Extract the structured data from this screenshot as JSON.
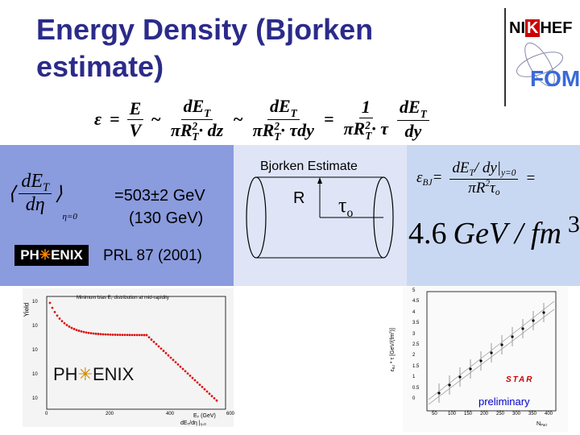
{
  "header": {
    "title": [
      "Energy Density (Bjorken",
      "estimate)"
    ],
    "logo_top": [
      "NI",
      "K",
      "HEF"
    ],
    "logo_bottom": "FOM"
  },
  "formula": [
    {
      "text": [
        {
          "t": "ε"
        }
      ]
    },
    {
      "text": [
        {
          "t": "="
        }
      ]
    },
    {
      "num": [
        {
          "t": "E"
        }
      ],
      "den": [
        {
          "t": "V"
        }
      ]
    },
    {
      "text": [
        {
          "t": "~"
        }
      ]
    },
    {
      "num": [
        {
          "t": "dE",
          "sub": "T"
        }
      ],
      "den": [
        {
          "t": "πR",
          "sub": "T",
          "sup": "2"
        },
        {
          "t": "· dz"
        }
      ]
    },
    {
      "text": [
        {
          "t": "~"
        }
      ]
    },
    {
      "num": [
        {
          "t": "dE",
          "sub": "T"
        }
      ],
      "den": [
        {
          "t": "πR",
          "sub": "T",
          "sup": "2"
        },
        {
          "t": "· τdy"
        }
      ]
    },
    {
      "text": [
        {
          "t": "="
        }
      ]
    },
    {
      "num": [
        {
          "t": "1"
        }
      ],
      "den": [
        {
          "t": "πR",
          "sub": "T",
          "sup": "2"
        },
        {
          "t": "· τ"
        }
      ]
    },
    {
      "num": [
        {
          "t": "dE",
          "sub": "T"
        }
      ],
      "den": [
        {
          "t": "dy"
        }
      ]
    }
  ],
  "phenix_panel": {
    "bracket_num": [
      {
        "t": "dE",
        "sub": "T"
      }
    ],
    "bracket_den": [
      {
        "t": "dη"
      }
    ],
    "bracket_sub": "η=0",
    "equals": "=",
    "value": "503±2 GeV",
    "value_alt": "(130 GeV)",
    "logo": [
      "PH",
      "ENIX"
    ],
    "reference": "PRL 87 (2001)"
  },
  "bjorken_panel": {
    "title": "Bjorken Estimate",
    "radius": "R",
    "tau": [
      {
        "t": "τ",
        "sub": "o"
      }
    ]
  },
  "result_panel": {
    "lhs": [
      {
        "t": "ε",
        "sub": "BJ"
      },
      {
        "t": "="
      }
    ],
    "num": [
      {
        "t": "dE",
        "sub": "T"
      },
      {
        "t": "/ dy|",
        "sub": "y=0"
      }
    ],
    "den": [
      {
        "t": "πR",
        "sup": "2"
      },
      {
        "t": "τ",
        "sub": "o"
      }
    ],
    "rhs": "=",
    "result": [
      {
        "t": "4.6"
      },
      {
        "t": "GeV / fm",
        "sup": "3"
      }
    ]
  },
  "spectrum_plot": {
    "title": [
      {
        "t": "Minimum bias E",
        "sub": "T"
      },
      {
        "t": " distribution at mid-rapidity"
      }
    ],
    "ylabel": "Yield",
    "yticks": [
      "10",
      "10",
      "10",
      "10",
      "10"
    ],
    "xticks": [
      "0",
      "200",
      "400",
      "600"
    ],
    "xlabel": [
      {
        "t": "E",
        "sub": "T"
      },
      {
        "t": " (GeV)"
      }
    ],
    "footer": [
      {
        "t": "dE",
        "sub": "T"
      },
      {
        "t": "/dη |",
        "sub": "η=0"
      }
    ],
    "logo": [
      "PH",
      "ENIX"
    ]
  },
  "star_plot": {
    "ylabel": [
      {
        "t": "ε",
        "sub": "BJ"
      },
      {
        "t": " * τ [GeV/(fm"
      },
      {
        "t": "",
        "sup": "2"
      },
      {
        "t": ")]"
      }
    ],
    "yticks": [
      "5",
      "4.5",
      "4",
      "3.5",
      "3",
      "2.5",
      "2",
      "1.5",
      "1",
      "0.5",
      "0"
    ],
    "xticks": [
      "50",
      "100",
      "150",
      "200",
      "250",
      "300",
      "350",
      "400"
    ],
    "xlabel": [
      {
        "t": "N",
        "sub": "Part"
      }
    ],
    "logo": "STAR",
    "note": "preliminary"
  }
}
